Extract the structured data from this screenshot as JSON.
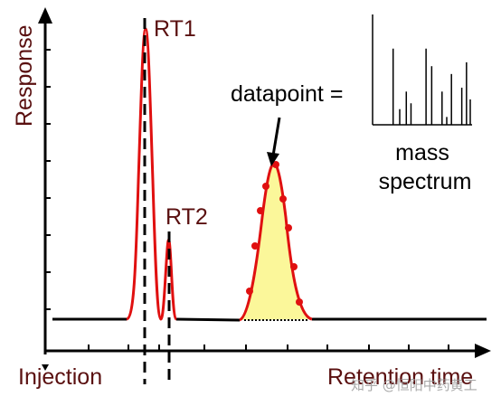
{
  "labels": {
    "y_axis": "Response",
    "x_left": "Injection",
    "x_right": "Retention time",
    "rt1": "RT1",
    "rt2": "RT2",
    "datapoint": "datapoint =",
    "mass": "mass",
    "spectrum": "spectrum"
  },
  "watermark": "知乎 @恒阳中药黄工",
  "colors": {
    "axis": "#000000",
    "peak_line": "#e01010",
    "peak_fill": "#fbf79a",
    "label": "#5a1010",
    "datapoint_marker": "#e01010"
  },
  "mass_spectrum_bars": [
    {
      "position": 0.18,
      "height": 0.78
    },
    {
      "position": 0.25,
      "height": 0.16
    },
    {
      "position": 0.32,
      "height": 0.34
    },
    {
      "position": 0.37,
      "height": 0.22
    },
    {
      "position": 0.53,
      "height": 0.78
    },
    {
      "position": 0.59,
      "height": 0.6
    },
    {
      "position": 0.7,
      "height": 0.34
    },
    {
      "position": 0.75,
      "height": 0.08
    },
    {
      "position": 0.8,
      "height": 0.52
    },
    {
      "position": 0.91,
      "height": 0.38
    },
    {
      "position": 0.96,
      "height": 0.64
    },
    {
      "position": 1.0,
      "height": 0.26
    }
  ]
}
